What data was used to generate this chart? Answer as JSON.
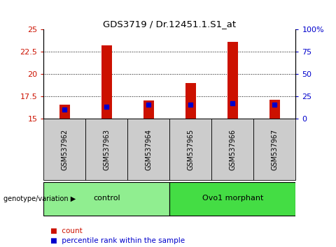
{
  "title": "GDS3719 / Dr.12451.1.S1_at",
  "samples": [
    "GSM537962",
    "GSM537963",
    "GSM537964",
    "GSM537965",
    "GSM537966",
    "GSM537967"
  ],
  "bar_tops": [
    16.6,
    23.2,
    17.0,
    19.0,
    23.6,
    17.1
  ],
  "bar_bottom": 15.0,
  "percentile_values": [
    16.0,
    16.35,
    16.6,
    16.55,
    16.75,
    16.55
  ],
  "ylim": [
    15.0,
    25.0
  ],
  "yticks_left": [
    15,
    17.5,
    20,
    22.5,
    25
  ],
  "yticks_right_labels": [
    "0",
    "25",
    "50",
    "75",
    "100%"
  ],
  "groups": [
    {
      "label": "control",
      "indices": [
        0,
        1,
        2
      ],
      "color": "#90EE90"
    },
    {
      "label": "Ovo1 morphant",
      "indices": [
        3,
        4,
        5
      ],
      "color": "#44DD44"
    }
  ],
  "bar_color": "#CC1100",
  "percentile_color": "#0000CC",
  "tick_color_left": "#CC1100",
  "tick_color_right": "#0000CC",
  "group_label": "genotype/variation",
  "legend_items": [
    {
      "label": "count",
      "color": "#CC1100"
    },
    {
      "label": "percentile rank within the sample",
      "color": "#0000CC"
    }
  ],
  "bar_width": 0.25,
  "sample_box_color": "#CCCCCC",
  "grid_lines": [
    17.5,
    20.0,
    22.5
  ]
}
